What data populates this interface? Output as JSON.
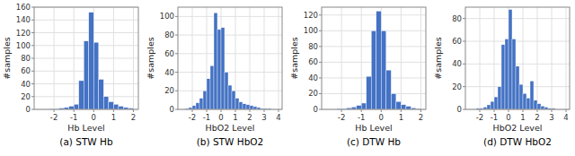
{
  "chart_data": [
    {
      "type": "histogram",
      "title": "(a) STW Hb",
      "x_label": "Hb Level",
      "y_label": "#samples",
      "xlim": [
        -3,
        2.25
      ],
      "ylim": [
        0,
        160
      ],
      "xticks": [
        -2,
        -1,
        0,
        1,
        2
      ],
      "yticks": [
        0,
        20,
        40,
        60,
        80,
        100,
        120,
        140,
        160
      ],
      "bins": [
        -3.0,
        -2.75,
        -2.5,
        -2.25,
        -2.0,
        -1.75,
        -1.5,
        -1.25,
        -1.0,
        -0.75,
        -0.5,
        -0.25,
        0.0,
        0.25,
        0.5,
        0.75,
        1.0,
        1.25,
        1.5,
        1.75,
        2.0,
        2.25
      ],
      "values": [
        0,
        0,
        0,
        1,
        1,
        2,
        3,
        5,
        8,
        45,
        107,
        152,
        105,
        47,
        20,
        12,
        8,
        5,
        3,
        2,
        0
      ],
      "color": "#4472c4",
      "grid": true
    },
    {
      "type": "histogram",
      "title": "(b) STW HbO2",
      "x_label": "HbO2 Level",
      "y_label": "#samples",
      "xlim": [
        -3,
        4.25
      ],
      "ylim": [
        0,
        110
      ],
      "xticks": [
        -2,
        -1,
        0,
        1,
        2,
        3,
        4
      ],
      "yticks": [
        0,
        20,
        40,
        60,
        80,
        100
      ],
      "bins": [
        -3.0,
        -2.75,
        -2.5,
        -2.25,
        -2.0,
        -1.75,
        -1.5,
        -1.25,
        -1.0,
        -0.75,
        -0.5,
        -0.25,
        0.0,
        0.25,
        0.5,
        0.75,
        1.0,
        1.25,
        1.5,
        1.75,
        2.0,
        2.25,
        2.5,
        2.75,
        3.0,
        3.25,
        3.5,
        3.75,
        4.0,
        4.25
      ],
      "values": [
        0,
        0,
        1,
        2,
        4,
        7,
        12,
        20,
        33,
        47,
        104,
        86,
        88,
        40,
        26,
        20,
        12,
        8,
        6,
        5,
        4,
        3,
        2,
        1,
        1,
        1,
        0,
        0,
        0
      ],
      "color": "#4472c4",
      "grid": true
    },
    {
      "type": "histogram",
      "title": "(c) DTW Hb",
      "x_label": "Hb Level",
      "y_label": "#samples",
      "xlim": [
        -3,
        2.25
      ],
      "ylim": [
        0,
        130
      ],
      "xticks": [
        -2,
        -1,
        0,
        1,
        2
      ],
      "yticks": [
        0,
        20,
        40,
        60,
        80,
        100,
        120
      ],
      "bins": [
        -3.0,
        -2.75,
        -2.5,
        -2.25,
        -2.0,
        -1.75,
        -1.5,
        -1.25,
        -1.0,
        -0.75,
        -0.5,
        -0.25,
        0.0,
        0.25,
        0.5,
        0.75,
        1.0,
        1.25,
        1.5,
        1.75,
        2.0,
        2.25
      ],
      "values": [
        0,
        0,
        0,
        1,
        1,
        2,
        3,
        5,
        8,
        42,
        100,
        125,
        100,
        50,
        20,
        10,
        6,
        4,
        2,
        1,
        0
      ],
      "color": "#4472c4",
      "grid": true
    },
    {
      "type": "histogram",
      "title": "(d) DTW HbO2",
      "x_label": "HbO2 Level",
      "y_label": "#samples",
      "xlim": [
        -3,
        4.25
      ],
      "ylim": [
        0,
        90
      ],
      "xticks": [
        -2,
        -1,
        0,
        1,
        2,
        3,
        4
      ],
      "yticks": [
        0,
        20,
        40,
        60,
        80
      ],
      "bins": [
        -3.0,
        -2.75,
        -2.5,
        -2.25,
        -2.0,
        -1.75,
        -1.5,
        -1.25,
        -1.0,
        -0.75,
        -0.5,
        -0.25,
        0.0,
        0.25,
        0.5,
        0.75,
        1.0,
        1.25,
        1.5,
        1.75,
        2.0,
        2.25,
        2.5,
        2.75,
        3.0,
        3.25,
        3.5,
        3.75,
        4.0,
        4.25
      ],
      "values": [
        0,
        0,
        0,
        1,
        1,
        2,
        4,
        7,
        11,
        20,
        57,
        62,
        88,
        62,
        38,
        22,
        14,
        10,
        25,
        8,
        5,
        3,
        2,
        1,
        1,
        0,
        0,
        0,
        0
      ],
      "color": "#4472c4",
      "grid": true
    }
  ]
}
